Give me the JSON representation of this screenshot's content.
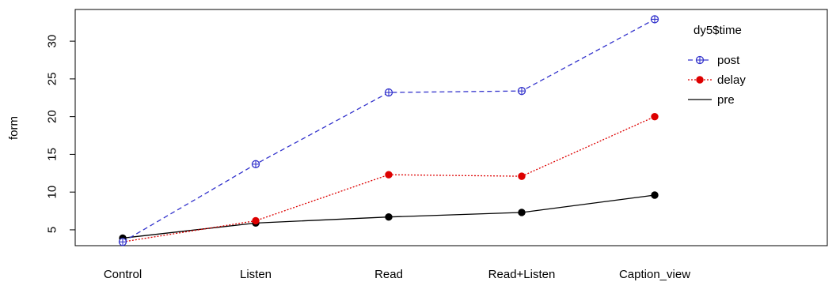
{
  "chart_data": {
    "type": "line",
    "title": "",
    "xlabel": "",
    "ylabel": "form",
    "categories": [
      "Control",
      "Listen",
      "Read",
      "Read+Listen",
      "Caption_view"
    ],
    "ylim": [
      2.9,
      34.2
    ],
    "yticks": [
      5,
      10,
      15,
      20,
      25,
      30
    ],
    "grid": false,
    "legend": {
      "title": "dy5$time",
      "placement": "top-right, inside plot",
      "entries": [
        "post",
        "delay",
        "pre"
      ]
    },
    "series": [
      {
        "name": "post",
        "values": [
          3.4,
          13.7,
          23.2,
          23.4,
          32.9
        ],
        "color": "#3333cc",
        "line": "dashed",
        "marker": "circle-plus"
      },
      {
        "name": "delay",
        "values": [
          3.4,
          6.2,
          12.3,
          12.1,
          20.0
        ],
        "color": "#dd0000",
        "line": "dotted",
        "marker": "filled-circle"
      },
      {
        "name": "pre",
        "values": [
          3.9,
          5.9,
          6.7,
          7.3,
          9.6
        ],
        "color": "#000000",
        "line": "solid",
        "marker": "filled-circle"
      }
    ]
  }
}
